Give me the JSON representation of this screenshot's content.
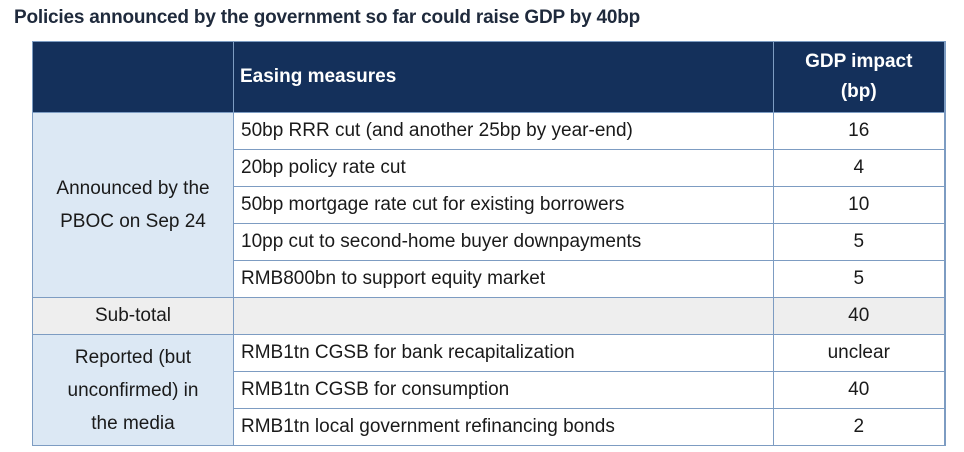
{
  "title": "Policies announced by the government so far could raise GDP by 40bp",
  "header": {
    "measures": "Easing measures",
    "impact_line1": "GDP impact",
    "impact_line2": "(bp)"
  },
  "groups": [
    {
      "label_line1": "Announced by the",
      "label_line2": "PBOC on Sep 24",
      "rows": [
        {
          "measure": "50bp RRR cut (and another 25bp by year-end)",
          "impact": "16"
        },
        {
          "measure": "20bp policy rate cut",
          "impact": "4"
        },
        {
          "measure": "50bp mortgage rate cut for existing borrowers",
          "impact": "10"
        },
        {
          "measure": "10pp cut to second-home buyer downpayments",
          "impact": "5"
        },
        {
          "measure": "RMB800bn to support equity market",
          "impact": "5"
        }
      ]
    },
    {
      "label_line1": "Reported (but",
      "label_line2": "unconfirmed) in",
      "label_line3": "the media",
      "rows": [
        {
          "measure": "RMB1tn CGSB for bank recapitalization",
          "impact": "unclear"
        },
        {
          "measure": "RMB1tn CGSB for consumption",
          "impact": "40"
        },
        {
          "measure": "RMB1tn local government refinancing bonds",
          "impact": "2"
        }
      ]
    }
  ],
  "subtotal": {
    "label": "Sub-total",
    "impact": "40"
  },
  "colors": {
    "header_bg": "#14305b",
    "group_bg": "#dce8f4",
    "subtotal_bg": "#eeeeee",
    "border": "#7d9cc2"
  },
  "chart_data": {
    "type": "table",
    "title": "Policies announced by the government so far could raise GDP by 40bp",
    "columns": [
      "",
      "Easing measures",
      "GDP impact (bp)"
    ],
    "rows": [
      [
        "Announced by the PBOC on Sep 24",
        "50bp RRR cut (and another 25bp by year-end)",
        "16"
      ],
      [
        "Announced by the PBOC on Sep 24",
        "20bp policy rate cut",
        "4"
      ],
      [
        "Announced by the PBOC on Sep 24",
        "50bp mortgage rate cut for existing borrowers",
        "10"
      ],
      [
        "Announced by the PBOC on Sep 24",
        "10pp cut to second-home buyer downpayments",
        "5"
      ],
      [
        "Announced by the PBOC on Sep 24",
        "RMB800bn to support equity market",
        "5"
      ],
      [
        "Sub-total",
        "",
        "40"
      ],
      [
        "Reported (but unconfirmed) in the media",
        "RMB1tn CGSB for bank recapitalization",
        "unclear"
      ],
      [
        "Reported (but unconfirmed) in the media",
        "RMB1tn CGSB for consumption",
        "40"
      ],
      [
        "Reported (but unconfirmed) in the media",
        "RMB1tn local government refinancing bonds",
        "2"
      ]
    ]
  }
}
